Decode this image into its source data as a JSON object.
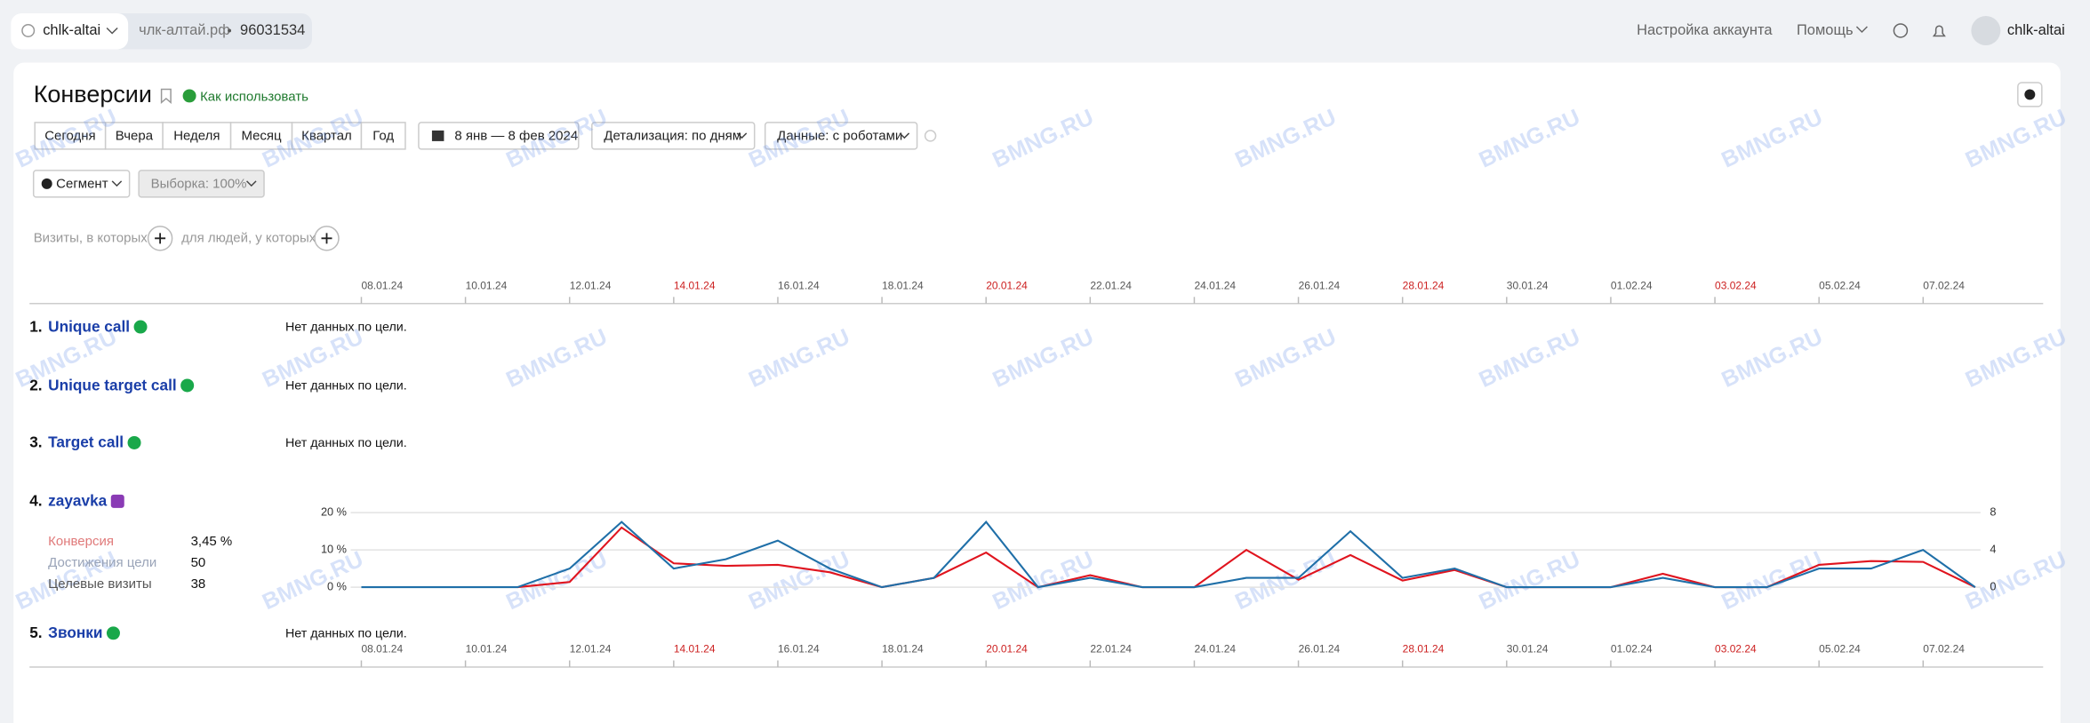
{
  "header": {
    "site_selector": "chlk-altai",
    "domain": "члк-алтай.рф",
    "counter": "96031534",
    "links": [
      "Настройка аккаунта",
      "Помощь"
    ],
    "user": "chlk-altai"
  },
  "page": {
    "title": "Конверсии",
    "help": "Как использовать",
    "periods": [
      "Сегодня",
      "Вчера",
      "Неделя",
      "Месяц",
      "Квартал",
      "Год"
    ],
    "date_range": "8 янв — 8 фев 2024",
    "detail": "Детализация: по дням",
    "data_mode": "Данные: с роботами",
    "segment": "Сегмент",
    "sample": "Выборка: 100%",
    "filters": [
      "Визиты, в которых",
      "для людей, у которых"
    ]
  },
  "watermark": "BMNG.RU",
  "goals": [
    {
      "number": "1.",
      "name": "Unique call",
      "note": "Нет данных по цели."
    },
    {
      "number": "2.",
      "name": "Unique target call",
      "note": "Нет данных по цели."
    },
    {
      "number": "3.",
      "name": "Target call",
      "note": "Нет данных по цели."
    },
    {
      "number": "4.",
      "name": "zayavka",
      "stats": [
        {
          "value": "3,45 %"
        },
        {
          "value": "50"
        },
        {
          "label": "Целевые визиты",
          "value": "38"
        }
      ]
    },
    {
      "number": "5.",
      "name": "Звонки",
      "note": "Нет данных по цели."
    }
  ],
  "chart_data": {
    "type": "line",
    "categories": [
      "08.01.24",
      null,
      "10.01.24",
      null,
      "12.01.24",
      null,
      "14.01.24",
      null,
      "16.01.24",
      null,
      "18.01.24",
      null,
      "20.01.24",
      null,
      "22.01.24",
      null,
      "24.01.24",
      null,
      "26.01.24",
      null,
      "28.01.24",
      null,
      "30.01.24",
      null,
      "01.02.24",
      null,
      "03.02.24",
      null,
      "05.02.24",
      null,
      "07.02.24",
      null
    ],
    "highlight_categories": [
      6,
      12,
      20,
      26
    ],
    "highlight_color": "#cc1f1f",
    "ylim": [
      0,
      20
    ],
    "yticks": [
      {
        "value": 0,
        "label": "0 %"
      },
      {
        "value": 10,
        "label": "10 %"
      },
      {
        "value": 20,
        "label": "20 %"
      }
    ],
    "y2lim": [
      0,
      8
    ],
    "y2ticks": [
      0,
      4,
      8
    ],
    "grid": true,
    "series": [
      {
        "name": "Конверсия",
        "color": "#e0141e",
        "values": [
          null,
          null,
          null,
          0,
          1.4,
          16,
          6.4,
          5.7,
          6,
          4,
          0,
          2.5,
          9.3,
          0,
          3.2,
          0,
          0,
          10,
          2,
          8.6,
          1.8,
          4.6,
          0,
          0,
          0,
          3.6,
          0,
          0,
          6,
          7,
          6.8,
          0
        ]
      },
      {
        "name": "Достижения цели",
        "color": "#1f6fa8",
        "axis": "y2",
        "values": [
          0,
          0,
          0,
          0,
          2,
          7,
          2,
          3,
          5,
          2,
          0,
          1,
          7,
          0,
          1,
          0,
          0,
          1,
          1,
          6,
          1,
          2,
          0,
          0,
          0,
          1,
          0,
          0,
          2,
          2,
          4,
          0
        ]
      }
    ]
  }
}
